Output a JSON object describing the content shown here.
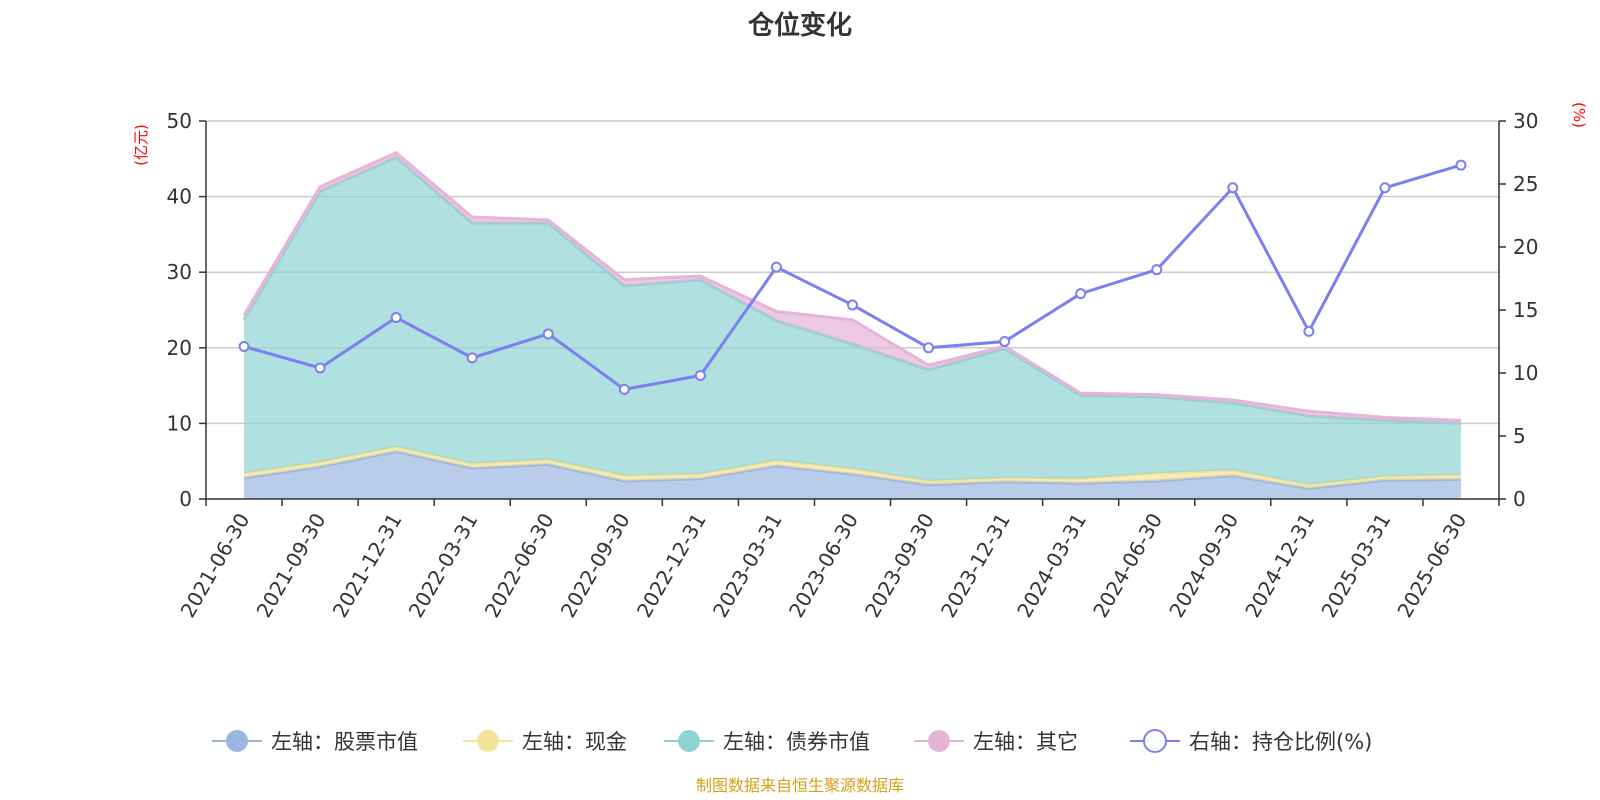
{
  "chart_data": {
    "type": "area",
    "title": "仓位变化",
    "left_axis": {
      "unit": "(亿元)",
      "ylim": [
        0,
        50
      ],
      "ticks": [
        0,
        10,
        20,
        30,
        40,
        50
      ]
    },
    "right_axis": {
      "unit": "(%)",
      "ylim": [
        0,
        30
      ],
      "ticks": [
        0,
        5,
        10,
        15,
        20,
        25,
        30
      ]
    },
    "categories": [
      "2021-06-30",
      "2021-09-30",
      "2021-12-31",
      "2022-03-31",
      "2022-06-30",
      "2022-09-30",
      "2022-12-31",
      "2023-03-31",
      "2023-06-30",
      "2023-09-30",
      "2023-12-31",
      "2024-03-31",
      "2024-06-30",
      "2024-09-30",
      "2024-12-31",
      "2025-03-31",
      "2025-06-30"
    ],
    "series": [
      {
        "name": "左轴：股票市值",
        "axis": "left",
        "stack": true,
        "color": "#9bb6e0",
        "values": [
          2.8,
          4.3,
          6.3,
          4.1,
          4.6,
          2.4,
          2.7,
          4.4,
          3.3,
          1.9,
          2.3,
          2.1,
          2.4,
          3.1,
          1.4,
          2.5,
          2.6
        ]
      },
      {
        "name": "左轴：现金",
        "axis": "left",
        "stack": true,
        "color": "#f5e39a",
        "values": [
          0.6,
          0.6,
          0.6,
          0.6,
          0.6,
          0.7,
          0.6,
          0.7,
          0.7,
          0.5,
          0.5,
          0.6,
          1.0,
          0.7,
          0.5,
          0.5,
          0.6
        ]
      },
      {
        "name": "左轴：债券市值",
        "axis": "left",
        "stack": true,
        "color": "#8fd3d1",
        "values": [
          20.3,
          35.8,
          38.3,
          31.8,
          31.3,
          25.1,
          25.7,
          18.5,
          16.5,
          14.7,
          17.1,
          11.0,
          10.1,
          8.9,
          9.1,
          7.4,
          6.8
        ]
      },
      {
        "name": "左轴：其它",
        "axis": "left",
        "stack": true,
        "color": "#e6b4d8",
        "values": [
          0.6,
          0.6,
          0.6,
          0.8,
          0.4,
          0.8,
          0.5,
          1.2,
          3.2,
          0.6,
          0.3,
          0.3,
          0.3,
          0.4,
          0.6,
          0.4,
          0.4
        ]
      },
      {
        "name": "右轴：持仓比例(%)",
        "axis": "right",
        "stack": false,
        "color": "#7b7ff0",
        "values": [
          12.1,
          10.4,
          14.4,
          11.2,
          13.1,
          8.7,
          9.8,
          18.4,
          15.4,
          12.0,
          12.5,
          16.3,
          18.2,
          24.7,
          13.3,
          24.7,
          26.5
        ]
      }
    ]
  },
  "footer": {
    "source": "制图数据来自恒生聚源数据库"
  }
}
